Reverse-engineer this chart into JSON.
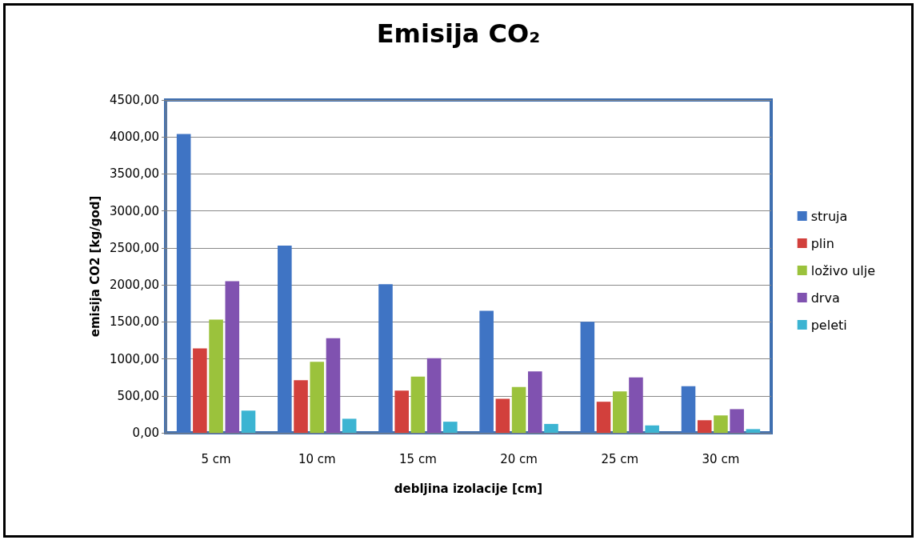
{
  "chart_data": {
    "type": "bar",
    "title": "Emisija CO₂",
    "xlabel": "debljina izolacije [cm]",
    "ylabel": "emisija CO2 [kg/god]",
    "categories": [
      "5 cm",
      "10 cm",
      "15 cm",
      "20 cm",
      "25 cm",
      "30 cm"
    ],
    "series": [
      {
        "name": "struja",
        "color": "#3f74c4",
        "values": [
          4040,
          2530,
          2010,
          1650,
          1500,
          630
        ]
      },
      {
        "name": "plin",
        "color": "#d2403c",
        "values": [
          1140,
          710,
          570,
          460,
          420,
          170
        ]
      },
      {
        "name": "loživo ulje",
        "color": "#9bc23c",
        "values": [
          1530,
          960,
          760,
          620,
          560,
          235
        ]
      },
      {
        "name": "drva",
        "color": "#8052b0",
        "values": [
          2050,
          1280,
          1010,
          830,
          750,
          320
        ]
      },
      {
        "name": "peleti",
        "color": "#3cb4d2",
        "values": [
          300,
          190,
          150,
          120,
          100,
          50
        ]
      }
    ],
    "ylim": [
      0,
      4500
    ],
    "yticks": [
      {
        "value": 0,
        "label": "0,00"
      },
      {
        "value": 500,
        "label": "500,00"
      },
      {
        "value": 1000,
        "label": "1000,00"
      },
      {
        "value": 1500,
        "label": "1500,00"
      },
      {
        "value": 2000,
        "label": "2000,00"
      },
      {
        "value": 2500,
        "label": "2500,00"
      },
      {
        "value": 3000,
        "label": "3000,00"
      },
      {
        "value": 3500,
        "label": "3500,00"
      },
      {
        "value": 4000,
        "label": "4000,00"
      },
      {
        "value": 4500,
        "label": "4500,00"
      }
    ],
    "grid": "y",
    "legend": "right"
  }
}
